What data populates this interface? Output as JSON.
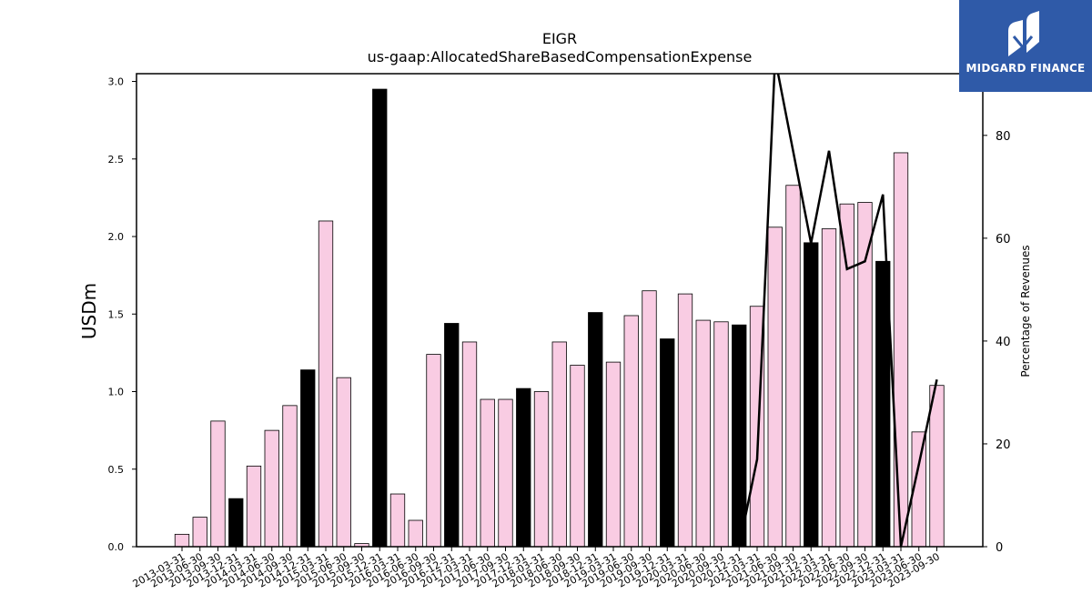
{
  "brand": {
    "name": "MIDGARD FINANCE",
    "logo_icon": "midgard-m-logo-icon",
    "background": "#2f5aa8"
  },
  "chart_data": {
    "type": "bar",
    "title": "EIGR",
    "subtitle": "us-gaap:AllocatedShareBasedCompensationExpense",
    "ylabel": "USDm",
    "y2label": "Percentage of Revenues",
    "ylim": [
      0,
      3.05
    ],
    "y2lim": [
      0,
      92
    ],
    "yticks": [
      "0.0",
      "0.5",
      "1.0",
      "1.5",
      "2.0",
      "2.5",
      "3.0"
    ],
    "y2ticks": [
      "0",
      "20",
      "40",
      "60",
      "80"
    ],
    "grid": false,
    "colors": {
      "quarterly": "#f9cce3",
      "annual": "#000000",
      "line": "#000000"
    },
    "categories": [
      "2013-03-31",
      "2013-06-30",
      "2013-09-30",
      "2013-12-31",
      "2014-03-31",
      "2014-06-30",
      "2014-09-30",
      "2014-12-31",
      "2015-03-31",
      "2015-06-30",
      "2015-09-30",
      "2015-12-31",
      "2016-03-31",
      "2016-06-30",
      "2016-09-30",
      "2016-12-31",
      "2017-03-31",
      "2017-06-30",
      "2017-09-30",
      "2017-12-31",
      "2018-03-31",
      "2018-06-30",
      "2018-09-30",
      "2018-12-31",
      "2019-03-31",
      "2019-06-30",
      "2019-09-30",
      "2019-12-31",
      "2020-03-31",
      "2020-06-30",
      "2020-09-30",
      "2020-12-31",
      "2021-03-31",
      "2021-06-30",
      "2021-09-30",
      "2021-12-31",
      "2022-03-31",
      "2022-06-30",
      "2022-09-30",
      "2022-12-31",
      "2023-03-31",
      "2023-06-30",
      "2023-09-30"
    ],
    "values": [
      0.08,
      0.19,
      0.81,
      0.31,
      0.52,
      0.75,
      0.91,
      1.14,
      2.1,
      1.09,
      0.02,
      2.95,
      0.34,
      0.17,
      1.24,
      1.44,
      1.32,
      0.95,
      0.95,
      1.02,
      1.0,
      1.32,
      1.17,
      1.51,
      1.19,
      1.49,
      1.65,
      1.34,
      1.63,
      1.46,
      1.45,
      1.43,
      1.55,
      2.06,
      2.33,
      1.96,
      2.05,
      2.21,
      2.22,
      1.84,
      2.54,
      0.74,
      1.04
    ],
    "annual": [
      false,
      false,
      false,
      true,
      false,
      false,
      false,
      true,
      false,
      false,
      false,
      true,
      false,
      false,
      false,
      true,
      false,
      false,
      false,
      true,
      false,
      false,
      false,
      true,
      false,
      false,
      false,
      true,
      false,
      false,
      false,
      true,
      false,
      false,
      false,
      true,
      false,
      false,
      false,
      true,
      false,
      false,
      false
    ],
    "pct_revenue": [
      {
        "x": "2020-12-31",
        "y": 0
      },
      {
        "x": "2021-03-31",
        "y": 17
      },
      {
        "x": "2021-06-30",
        "y": 95
      },
      {
        "x": "2021-09-30",
        "y": 77
      },
      {
        "x": "2021-12-31",
        "y": 59
      },
      {
        "x": "2022-03-31",
        "y": 77
      },
      {
        "x": "2022-06-30",
        "y": 54
      },
      {
        "x": "2022-09-30",
        "y": 55.5
      },
      {
        "x": "2022-12-31",
        "y": 68.5
      },
      {
        "x": "2023-03-31",
        "y": 0
      },
      {
        "x": "2023-06-30",
        "y": 16
      },
      {
        "x": "2023-09-30",
        "y": 32.5
      }
    ]
  }
}
